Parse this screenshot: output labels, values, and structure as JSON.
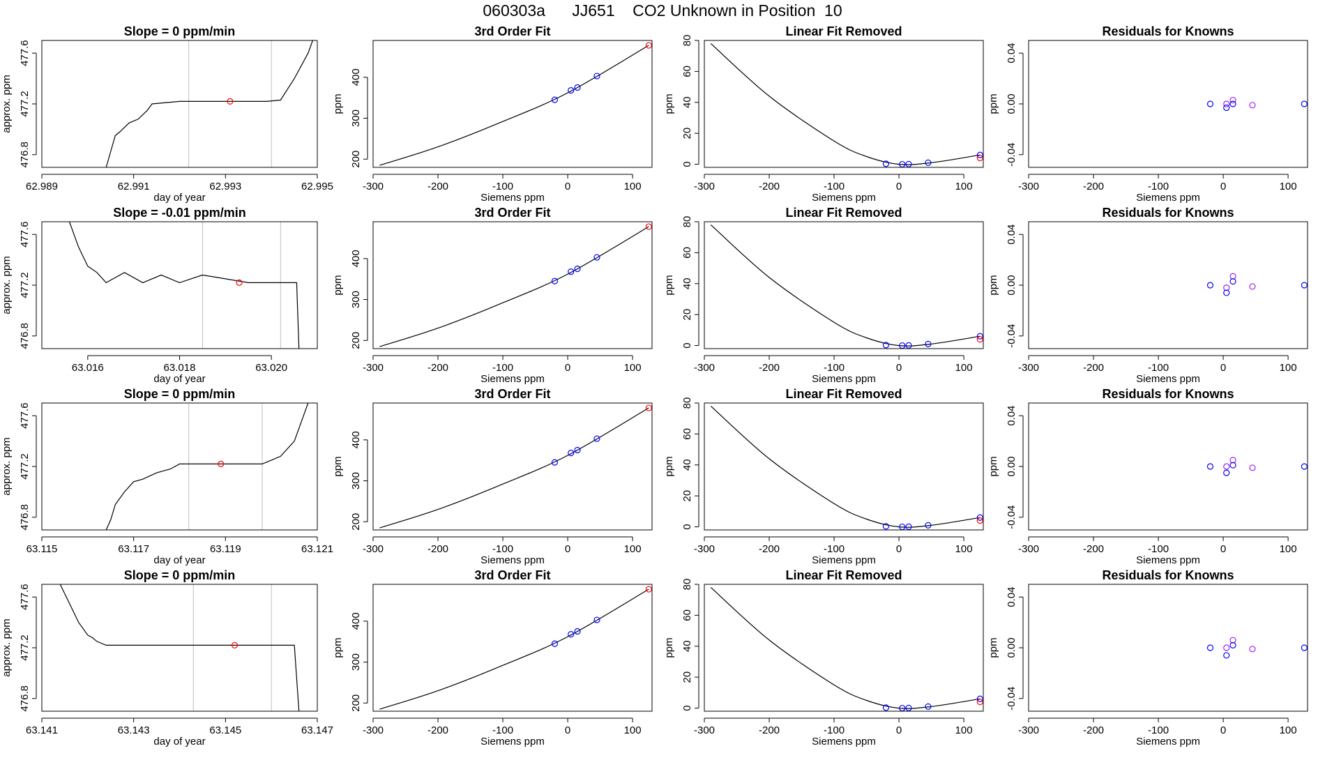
{
  "page_title": "060303a      JJ651    CO2 Unknown in Position  10",
  "chart_data": [
    {
      "id": "r1-time",
      "type": "line",
      "title": "Slope =  0  ppm/min",
      "xlabel": "day of year",
      "ylabel": "approx. ppm",
      "xlim": [
        62.989,
        62.995
      ],
      "ylim": [
        476.7,
        477.7
      ],
      "xticks": [
        "62.989",
        "62.991",
        "62.993",
        "62.995"
      ],
      "xtick_values": [
        62.989,
        62.991,
        62.993,
        62.995
      ],
      "yticks": [
        "476.8",
        "477.2",
        "477.6"
      ],
      "ytick_values": [
        476.8,
        477.2,
        477.6
      ],
      "vlines": [
        62.9922,
        62.994
      ],
      "series": [
        {
          "name": "trace",
          "x": [
            62.9904,
            62.9906,
            62.9907,
            62.9909,
            62.9911,
            62.9913,
            62.9914,
            62.992,
            62.9939,
            62.9942,
            62.9945,
            62.9948,
            62.9949
          ],
          "y": [
            476.7,
            476.95,
            476.98,
            477.05,
            477.08,
            477.15,
            477.2,
            477.22,
            477.22,
            477.23,
            477.4,
            477.6,
            477.7
          ]
        }
      ],
      "marker": {
        "x": 62.9931,
        "y": 477.22
      }
    },
    {
      "id": "r1-fit",
      "type": "scatter",
      "title": "3rd Order Fit",
      "xlabel": "Siemens ppm",
      "ylabel": "ppm",
      "xlim": [
        -300,
        130
      ],
      "ylim": [
        180,
        490
      ],
      "xticks": [
        "-300",
        "-200",
        "-100",
        "0",
        "100"
      ],
      "xtick_values": [
        -300,
        -200,
        -100,
        0,
        100
      ],
      "yticks": [
        "200",
        "300",
        "400"
      ],
      "ytick_values": [
        200,
        300,
        400
      ],
      "curve": {
        "x": [
          -290,
          -200,
          -100,
          0,
          125
        ],
        "y": [
          185,
          230,
          292,
          362,
          478
        ]
      },
      "known_points": {
        "x": [
          -20,
          5,
          15,
          45
        ],
        "y": [
          345,
          368,
          375,
          403
        ]
      },
      "unknown_point": {
        "x": 125,
        "y": 478
      }
    },
    {
      "id": "r1-linrem",
      "type": "scatter",
      "title": "Linear Fit Removed",
      "xlabel": "Siemens ppm",
      "ylabel": "ppm",
      "xlim": [
        -300,
        130
      ],
      "ylim": [
        -2,
        80
      ],
      "xticks": [
        "-300",
        "-200",
        "-100",
        "0",
        "100"
      ],
      "xtick_values": [
        -300,
        -200,
        -100,
        0,
        100
      ],
      "yticks": [
        "0",
        "20",
        "40",
        "60",
        "80"
      ],
      "ytick_values": [
        0,
        20,
        40,
        60,
        80
      ],
      "curve": {
        "x": [
          -290,
          -200,
          -100,
          -50,
          0,
          50,
          125
        ],
        "y": [
          78,
          44,
          15,
          5,
          0,
          1,
          6
        ]
      },
      "known_points": {
        "x": [
          -20,
          5,
          15,
          45,
          125
        ],
        "y": [
          0.3,
          0,
          0.1,
          1,
          6
        ]
      },
      "unknown_point": {
        "x": 125,
        "y": 4
      }
    },
    {
      "id": "r1-resid",
      "type": "scatter",
      "title": "Residuals for Knowns",
      "xlabel": "Siemens ppm",
      "ylabel": "ppm",
      "xlim": [
        -300,
        130
      ],
      "ylim": [
        -0.05,
        0.05
      ],
      "xticks": [
        "-300",
        "-200",
        "-100",
        "0",
        "100"
      ],
      "xtick_values": [
        -300,
        -200,
        -100,
        0,
        100
      ],
      "yticks": [
        "-0.04",
        "0.00",
        "0.04"
      ],
      "ytick_values": [
        -0.04,
        0.0,
        0.04
      ],
      "known_points": {
        "x": [
          -20,
          5,
          5,
          15,
          15,
          45,
          125
        ],
        "y": [
          0.0,
          0.0,
          -0.003,
          0.003,
          0.0,
          -0.001,
          0.0
        ]
      }
    },
    {
      "id": "r2-time",
      "type": "line",
      "title": "Slope =  -0.01  ppm/min",
      "xlabel": "day of year",
      "ylabel": "approx. ppm",
      "xlim": [
        63.015,
        63.021
      ],
      "ylim": [
        476.7,
        477.7
      ],
      "xticks": [
        "63.016",
        "63.018",
        "63.020"
      ],
      "xtick_values": [
        63.016,
        63.018,
        63.02
      ],
      "yticks": [
        "476.8",
        "477.2",
        "477.6"
      ],
      "ytick_values": [
        476.8,
        477.2,
        477.6
      ],
      "vlines": [
        63.0185,
        63.0202
      ],
      "series": [
        {
          "name": "trace",
          "x": [
            63.0156,
            63.0158,
            63.016,
            63.0162,
            63.0164,
            63.0168,
            63.0172,
            63.0176,
            63.018,
            63.0185,
            63.019,
            63.0195,
            63.0199,
            63.02055,
            63.0206
          ],
          "y": [
            477.7,
            477.5,
            477.35,
            477.3,
            477.22,
            477.3,
            477.22,
            477.28,
            477.22,
            477.28,
            477.25,
            477.22,
            477.22,
            477.22,
            476.7
          ]
        }
      ],
      "marker": {
        "x": 63.0193,
        "y": 477.22
      }
    },
    {
      "id": "r2-fit",
      "type": "scatter",
      "title": "3rd Order Fit",
      "xlabel": "Siemens ppm",
      "ylabel": "ppm",
      "xlim": [
        -300,
        130
      ],
      "ylim": [
        180,
        490
      ],
      "xticks": [
        "-300",
        "-200",
        "-100",
        "0",
        "100"
      ],
      "xtick_values": [
        -300,
        -200,
        -100,
        0,
        100
      ],
      "yticks": [
        "200",
        "300",
        "400"
      ],
      "ytick_values": [
        200,
        300,
        400
      ],
      "curve": {
        "x": [
          -290,
          -200,
          -100,
          0,
          125
        ],
        "y": [
          185,
          230,
          292,
          362,
          478
        ]
      },
      "known_points": {
        "x": [
          -20,
          5,
          15,
          45
        ],
        "y": [
          345,
          368,
          375,
          403
        ]
      },
      "unknown_point": {
        "x": 125,
        "y": 478
      }
    },
    {
      "id": "r2-linrem",
      "type": "scatter",
      "title": "Linear Fit Removed",
      "xlabel": "Siemens ppm",
      "ylabel": "ppm",
      "xlim": [
        -300,
        130
      ],
      "ylim": [
        -2,
        80
      ],
      "xticks": [
        "-300",
        "-200",
        "-100",
        "0",
        "100"
      ],
      "xtick_values": [
        -300,
        -200,
        -100,
        0,
        100
      ],
      "yticks": [
        "0",
        "20",
        "40",
        "60",
        "80"
      ],
      "ytick_values": [
        0,
        20,
        40,
        60,
        80
      ],
      "curve": {
        "x": [
          -290,
          -200,
          -100,
          -50,
          0,
          50,
          125
        ],
        "y": [
          78,
          44,
          15,
          5,
          0,
          1,
          6
        ]
      },
      "known_points": {
        "x": [
          -20,
          5,
          15,
          45,
          125
        ],
        "y": [
          0.3,
          0,
          0.1,
          1,
          6
        ]
      },
      "unknown_point": {
        "x": 125,
        "y": 4
      }
    },
    {
      "id": "r2-resid",
      "type": "scatter",
      "title": "Residuals for Knowns",
      "xlabel": "Siemens ppm",
      "ylabel": "ppm",
      "xlim": [
        -300,
        130
      ],
      "ylim": [
        -0.05,
        0.05
      ],
      "xticks": [
        "-300",
        "-200",
        "-100",
        "0",
        "100"
      ],
      "xtick_values": [
        -300,
        -200,
        -100,
        0,
        100
      ],
      "yticks": [
        "-0.04",
        "0.00",
        "0.04"
      ],
      "ytick_values": [
        -0.04,
        0.0,
        0.04
      ],
      "known_points": {
        "x": [
          -20,
          5,
          5,
          15,
          15,
          45,
          125
        ],
        "y": [
          0.0,
          -0.002,
          -0.006,
          0.007,
          0.003,
          -0.001,
          0.0
        ]
      }
    },
    {
      "id": "r3-time",
      "type": "line",
      "title": "Slope =  0  ppm/min",
      "xlabel": "day of year",
      "ylabel": "approx. ppm",
      "xlim": [
        63.115,
        63.121
      ],
      "ylim": [
        476.7,
        477.7
      ],
      "xticks": [
        "63.115",
        "63.117",
        "63.119",
        "63.121"
      ],
      "xtick_values": [
        63.115,
        63.117,
        63.119,
        63.121
      ],
      "yticks": [
        "476.8",
        "477.2",
        "477.6"
      ],
      "ytick_values": [
        476.8,
        477.2,
        477.6
      ],
      "vlines": [
        63.1182,
        63.1198
      ],
      "series": [
        {
          "name": "trace",
          "x": [
            63.1164,
            63.1165,
            63.1166,
            63.1168,
            63.117,
            63.1172,
            63.1175,
            63.1178,
            63.118,
            63.1198,
            63.12,
            63.1202,
            63.1205,
            63.1208
          ],
          "y": [
            476.7,
            476.78,
            476.9,
            477.0,
            477.08,
            477.1,
            477.15,
            477.18,
            477.22,
            477.22,
            477.25,
            477.28,
            477.4,
            477.7
          ]
        }
      ],
      "marker": {
        "x": 63.1189,
        "y": 477.22
      }
    },
    {
      "id": "r3-fit",
      "type": "scatter",
      "title": "3rd Order Fit",
      "xlabel": "Siemens ppm",
      "ylabel": "ppm",
      "xlim": [
        -300,
        130
      ],
      "ylim": [
        180,
        490
      ],
      "xticks": [
        "-300",
        "-200",
        "-100",
        "0",
        "100"
      ],
      "xtick_values": [
        -300,
        -200,
        -100,
        0,
        100
      ],
      "yticks": [
        "200",
        "300",
        "400"
      ],
      "ytick_values": [
        200,
        300,
        400
      ],
      "curve": {
        "x": [
          -290,
          -200,
          -100,
          0,
          125
        ],
        "y": [
          185,
          230,
          292,
          362,
          478
        ]
      },
      "known_points": {
        "x": [
          -20,
          5,
          15,
          45
        ],
        "y": [
          345,
          368,
          375,
          403
        ]
      },
      "unknown_point": {
        "x": 125,
        "y": 478
      }
    },
    {
      "id": "r3-linrem",
      "type": "scatter",
      "title": "Linear Fit Removed",
      "xlabel": "Siemens ppm",
      "ylabel": "ppm",
      "xlim": [
        -300,
        130
      ],
      "ylim": [
        -2,
        80
      ],
      "xticks": [
        "-300",
        "-200",
        "-100",
        "0",
        "100"
      ],
      "xtick_values": [
        -300,
        -200,
        -100,
        0,
        100
      ],
      "yticks": [
        "0",
        "20",
        "40",
        "60",
        "80"
      ],
      "ytick_values": [
        0,
        20,
        40,
        60,
        80
      ],
      "curve": {
        "x": [
          -290,
          -200,
          -100,
          -50,
          0,
          50,
          125
        ],
        "y": [
          78,
          44,
          15,
          5,
          0,
          1,
          6
        ]
      },
      "known_points": {
        "x": [
          -20,
          5,
          15,
          45,
          125
        ],
        "y": [
          0.3,
          0,
          0.1,
          1,
          6
        ]
      },
      "unknown_point": {
        "x": 125,
        "y": 4
      }
    },
    {
      "id": "r3-resid",
      "type": "scatter",
      "title": "Residuals for Knowns",
      "xlabel": "Siemens ppm",
      "ylabel": "ppm",
      "xlim": [
        -300,
        130
      ],
      "ylim": [
        -0.05,
        0.05
      ],
      "xticks": [
        "-300",
        "-200",
        "-100",
        "0",
        "100"
      ],
      "xtick_values": [
        -300,
        -200,
        -100,
        0,
        100
      ],
      "yticks": [
        "-0.04",
        "0.00",
        "0.04"
      ],
      "ytick_values": [
        -0.04,
        0.0,
        0.04
      ],
      "known_points": {
        "x": [
          -20,
          5,
          5,
          15,
          15,
          45,
          125
        ],
        "y": [
          0.0,
          0.0,
          -0.005,
          0.005,
          0.001,
          -0.001,
          0.0
        ]
      }
    },
    {
      "id": "r4-time",
      "type": "line",
      "title": "Slope =  0  ppm/min",
      "xlabel": "day of year",
      "ylabel": "approx. ppm",
      "xlim": [
        63.141,
        63.147
      ],
      "ylim": [
        476.7,
        477.7
      ],
      "xticks": [
        "63.141",
        "63.143",
        "63.145",
        "63.147"
      ],
      "xtick_values": [
        63.141,
        63.143,
        63.145,
        63.147
      ],
      "yticks": [
        "476.8",
        "477.2",
        "477.6"
      ],
      "ytick_values": [
        476.8,
        477.2,
        477.6
      ],
      "vlines": [
        63.1443,
        63.146
      ],
      "series": [
        {
          "name": "trace",
          "x": [
            63.1414,
            63.1416,
            63.1418,
            63.142,
            63.1421,
            63.1422,
            63.1424,
            63.146,
            63.1463,
            63.1465,
            63.1466
          ],
          "y": [
            477.7,
            477.55,
            477.4,
            477.3,
            477.28,
            477.25,
            477.22,
            477.22,
            477.22,
            477.22,
            476.7
          ]
        }
      ],
      "marker": {
        "x": 63.1452,
        "y": 477.22
      }
    },
    {
      "id": "r4-fit",
      "type": "scatter",
      "title": "3rd Order Fit",
      "xlabel": "Siemens ppm",
      "ylabel": "ppm",
      "xlim": [
        -300,
        130
      ],
      "ylim": [
        180,
        490
      ],
      "xticks": [
        "-300",
        "-200",
        "-100",
        "0",
        "100"
      ],
      "xtick_values": [
        -300,
        -200,
        -100,
        0,
        100
      ],
      "yticks": [
        "200",
        "300",
        "400"
      ],
      "ytick_values": [
        200,
        300,
        400
      ],
      "curve": {
        "x": [
          -290,
          -200,
          -100,
          0,
          125
        ],
        "y": [
          185,
          230,
          292,
          362,
          478
        ]
      },
      "known_points": {
        "x": [
          -20,
          5,
          15,
          45
        ],
        "y": [
          345,
          368,
          375,
          403
        ]
      },
      "unknown_point": {
        "x": 125,
        "y": 478
      }
    },
    {
      "id": "r4-linrem",
      "type": "scatter",
      "title": "Linear Fit Removed",
      "xlabel": "Siemens ppm",
      "ylabel": "ppm",
      "xlim": [
        -300,
        130
      ],
      "ylim": [
        -2,
        80
      ],
      "xticks": [
        "-300",
        "-200",
        "-100",
        "0",
        "100"
      ],
      "xtick_values": [
        -300,
        -200,
        -100,
        0,
        100
      ],
      "yticks": [
        "0",
        "20",
        "40",
        "60",
        "80"
      ],
      "ytick_values": [
        0,
        20,
        40,
        60,
        80
      ],
      "curve": {
        "x": [
          -290,
          -200,
          -100,
          -50,
          0,
          50,
          125
        ],
        "y": [
          78,
          44,
          15,
          5,
          0,
          1,
          6
        ]
      },
      "known_points": {
        "x": [
          -20,
          5,
          15,
          45,
          125
        ],
        "y": [
          0.3,
          0,
          0.1,
          1,
          6
        ]
      },
      "unknown_point": {
        "x": 125,
        "y": 4
      }
    },
    {
      "id": "r4-resid",
      "type": "scatter",
      "title": "Residuals for Knowns",
      "xlabel": "Siemens ppm",
      "ylabel": "ppm",
      "xlim": [
        -300,
        130
      ],
      "ylim": [
        -0.05,
        0.05
      ],
      "xticks": [
        "-300",
        "-200",
        "-100",
        "0",
        "100"
      ],
      "xtick_values": [
        -300,
        -200,
        -100,
        0,
        100
      ],
      "yticks": [
        "-0.04",
        "0.00",
        "0.04"
      ],
      "ytick_values": [
        -0.04,
        0.0,
        0.04
      ],
      "known_points": {
        "x": [
          -20,
          5,
          5,
          15,
          15,
          45,
          125
        ],
        "y": [
          0.0,
          0.0,
          -0.006,
          0.006,
          0.002,
          -0.001,
          0.0
        ]
      }
    }
  ],
  "colors": {
    "axis": "#000000",
    "trace": "#000000",
    "vline": "#bebebe",
    "known": "#0000ff",
    "known_alt": "#a020f0",
    "unknown": "#ff0000"
  }
}
